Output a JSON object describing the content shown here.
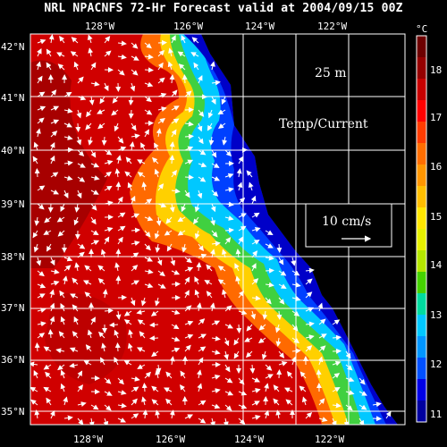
{
  "title": "NRL NPACNFS 72-Hr Forecast valid at 2004/09/15 00Z",
  "depth": "25 m",
  "field": "Temp/Current",
  "reference_vector": "10 cm/s",
  "colorbar": {
    "unit": "°C",
    "ticks": [
      "18",
      "17",
      "16",
      "15",
      "14",
      "13",
      "12",
      "11"
    ],
    "colors": [
      "#6e0000",
      "#960000",
      "#c80000",
      "#ff0000",
      "#ff3c00",
      "#ff6e00",
      "#ff9600",
      "#ffbe00",
      "#ffe600",
      "#e6f000",
      "#b4e600",
      "#46d200",
      "#00dca0",
      "#00c8ff",
      "#0096ff",
      "#0050ff",
      "#0000e6",
      "#0000a0"
    ]
  },
  "axes": {
    "x_ticks": [
      "128°W",
      "126°W",
      "124°W",
      "122°W"
    ],
    "y_ticks": [
      "42°N",
      "41°N",
      "40°N",
      "39°N",
      "38°N",
      "37°N",
      "36°N",
      "35°N"
    ]
  },
  "colors": {
    "land": "#000000",
    "ocean_warm": "#c80000",
    "ocean_cold": "#0000c8",
    "vectors": "#ffffff"
  }
}
